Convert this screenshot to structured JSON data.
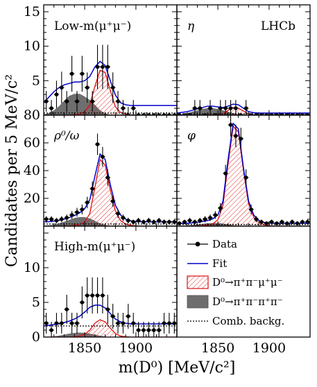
{
  "figure": {
    "xlabel": "m(D⁰) [MeV/c²]",
    "ylabel": "Candidates per 5 MeV/c²",
    "experiment_label": "LHCb"
  },
  "legend": {
    "data": "Data",
    "fit": "Fit",
    "signal": "D⁰→π⁺π⁻μ⁺μ⁻",
    "peaking": "D⁰→π⁺π⁻π⁺π⁻",
    "combinatorial": "Comb. backg."
  },
  "colors": {
    "fit": "#0000cc",
    "signal": "#dd1111",
    "peaking": "#6e6e6e",
    "frame": "#000000"
  },
  "chart_data": [
    {
      "type": "scatter",
      "panel": "Low-m(μ⁺μ⁻)",
      "label": "Low-m(μ⁺μ⁻)",
      "xlim": [
        1810,
        1940
      ],
      "ylim": [
        0,
        16
      ],
      "yticks": [
        5,
        10,
        15
      ],
      "xticks": [
        1850,
        1900
      ],
      "points": {
        "x": [
          1812.5,
          1817.5,
          1822.5,
          1827.5,
          1832.5,
          1837.5,
          1842.5,
          1847.5,
          1852.5,
          1857.5,
          1862.5,
          1867.5,
          1872.5,
          1877.5,
          1882.5,
          1887.5,
          1892.5,
          1897.5,
          1902.5,
          1907.5,
          1912.5,
          1917.5,
          1922.5,
          1927.5,
          1932.5,
          1937.5
        ],
        "y": [
          2,
          1,
          3,
          4,
          2,
          6,
          2,
          6,
          4,
          2,
          7,
          7,
          7,
          4,
          2,
          1,
          0,
          1,
          0,
          0,
          0,
          0,
          0,
          0,
          0,
          0
        ],
        "err": [
          1.5,
          1.2,
          2.0,
          2.3,
          1.5,
          2.6,
          1.5,
          2.6,
          2.2,
          1.5,
          3.2,
          3.2,
          3.2,
          2.2,
          1.5,
          1.2,
          1.2,
          1.2,
          0,
          0,
          0,
          0,
          0,
          0,
          0,
          0
        ]
      },
      "curves": {
        "x": [
          1810,
          1815,
          1820,
          1825,
          1830,
          1835,
          1840,
          1845,
          1850,
          1855,
          1860,
          1865,
          1870,
          1875,
          1880,
          1885,
          1890,
          1895,
          1900,
          1905,
          1910,
          1915,
          1920,
          1925,
          1930,
          1935,
          1940
        ],
        "fit": [
          1.8,
          2.6,
          3.4,
          4.0,
          4.4,
          4.6,
          4.8,
          4.8,
          5.0,
          5.6,
          7.0,
          7.8,
          7.2,
          5.0,
          2.9,
          1.8,
          1.5,
          1.4,
          1.4,
          1.4,
          1.4,
          1.4,
          1.4,
          1.4,
          1.4,
          1.4,
          1.4
        ],
        "signal": [
          0,
          0,
          0,
          0,
          0,
          0,
          0.05,
          0.15,
          0.5,
          1.5,
          4.2,
          6.5,
          6.2,
          3.6,
          1.2,
          0.4,
          0.15,
          0.05,
          0,
          0,
          0,
          0,
          0,
          0,
          0,
          0,
          0
        ],
        "peaking": [
          0.1,
          0.3,
          0.7,
          1.3,
          2.1,
          2.8,
          3.1,
          3.1,
          2.7,
          2.2,
          1.5,
          0.7,
          0.25,
          0.05,
          0,
          0,
          0,
          0,
          0,
          0,
          0,
          0,
          0,
          0,
          0,
          0,
          0
        ],
        "combinatorial": [
          0.3,
          0.3,
          0.3,
          0.3,
          0.3,
          0.3,
          0.3,
          0.3,
          0.3,
          0.3,
          0.3,
          0.3,
          0.3,
          0.3,
          0.3,
          0.3,
          0.3,
          0.3,
          0.3,
          0.3,
          0.3,
          0.3,
          0.3,
          0.3,
          0.3,
          0.3,
          0.3
        ]
      }
    },
    {
      "type": "scatter",
      "panel": "η",
      "label": "η",
      "xlim": [
        1810,
        1940
      ],
      "ylim": [
        0,
        16
      ],
      "yticks": [],
      "xticks": [
        1850,
        1900
      ],
      "points": {
        "x": [
          1812.5,
          1817.5,
          1822.5,
          1827.5,
          1832.5,
          1837.5,
          1842.5,
          1847.5,
          1852.5,
          1857.5,
          1862.5,
          1867.5,
          1872.5,
          1877.5,
          1882.5,
          1887.5,
          1892.5,
          1897.5,
          1902.5,
          1907.5,
          1912.5,
          1917.5,
          1922.5,
          1927.5,
          1932.5,
          1937.5
        ],
        "y": [
          0,
          0,
          0,
          1,
          1,
          0,
          1,
          0,
          1,
          1,
          1,
          1,
          0,
          1,
          0,
          0,
          0,
          0,
          0,
          0,
          0,
          0,
          0,
          0,
          0,
          0
        ],
        "err": [
          0,
          0,
          0,
          1.2,
          1.2,
          0,
          1.2,
          0,
          1.2,
          1.2,
          1.2,
          1.2,
          0,
          1.2,
          0,
          0,
          0,
          0,
          0,
          0,
          0,
          0,
          0,
          0,
          0,
          0
        ]
      },
      "curves": {
        "x": [
          1810,
          1815,
          1820,
          1825,
          1830,
          1835,
          1840,
          1845,
          1850,
          1855,
          1860,
          1865,
          1870,
          1875,
          1880,
          1885,
          1890,
          1895,
          1900,
          1905,
          1910,
          1915,
          1920,
          1925,
          1930,
          1935,
          1940
        ],
        "fit": [
          0.3,
          0.4,
          0.5,
          0.7,
          0.9,
          1.1,
          1.3,
          1.3,
          1.2,
          1.1,
          1.3,
          1.6,
          1.5,
          1.0,
          0.5,
          0.35,
          0.3,
          0.3,
          0.3,
          0.3,
          0.3,
          0.3,
          0.3,
          0.3,
          0.3,
          0.3,
          0.3
        ],
        "signal": [
          0,
          0,
          0,
          0,
          0,
          0,
          0,
          0,
          0.05,
          0.2,
          0.7,
          1.1,
          1.0,
          0.6,
          0.2,
          0.05,
          0,
          0,
          0,
          0,
          0,
          0,
          0,
          0,
          0,
          0,
          0
        ],
        "peaking": [
          0.05,
          0.1,
          0.3,
          0.5,
          0.7,
          0.9,
          1.0,
          1.0,
          0.9,
          0.7,
          0.5,
          0.3,
          0.1,
          0.03,
          0,
          0,
          0,
          0,
          0,
          0,
          0,
          0,
          0,
          0,
          0,
          0,
          0
        ],
        "combinatorial": [
          0.2,
          0.2,
          0.2,
          0.2,
          0.2,
          0.2,
          0.2,
          0.2,
          0.2,
          0.2,
          0.2,
          0.2,
          0.2,
          0.2,
          0.2,
          0.2,
          0.2,
          0.2,
          0.2,
          0.2,
          0.2,
          0.2,
          0.2,
          0.2,
          0.2,
          0.2,
          0.2
        ]
      }
    },
    {
      "type": "scatter",
      "panel": "ρ⁰/ω",
      "label": "ρ⁰/ω",
      "xlim": [
        1810,
        1940
      ],
      "ylim": [
        0,
        80
      ],
      "yticks": [
        20,
        40,
        60,
        80
      ],
      "xticks": [
        1850,
        1900
      ],
      "points": {
        "x": [
          1812.5,
          1817.5,
          1822.5,
          1827.5,
          1832.5,
          1837.5,
          1842.5,
          1847.5,
          1852.5,
          1857.5,
          1862.5,
          1867.5,
          1872.5,
          1877.5,
          1882.5,
          1887.5,
          1892.5,
          1897.5,
          1902.5,
          1907.5,
          1912.5,
          1917.5,
          1922.5,
          1927.5,
          1932.5,
          1937.5
        ],
        "y": [
          5,
          5,
          4,
          5,
          6,
          8,
          10,
          12,
          17,
          27,
          59,
          50,
          35,
          18,
          9,
          6,
          4,
          3,
          4,
          3,
          4,
          3,
          4,
          3,
          3,
          3
        ],
        "err": [
          2.2,
          2.2,
          2.0,
          2.2,
          2.4,
          2.8,
          3.2,
          3.5,
          4.1,
          5.2,
          7.7,
          7.1,
          5.9,
          4.2,
          3.0,
          2.4,
          2.0,
          1.7,
          2.0,
          1.7,
          2.0,
          1.7,
          2.0,
          1.7,
          1.7,
          1.7
        ]
      },
      "curves": {
        "x": [
          1810,
          1815,
          1820,
          1825,
          1830,
          1835,
          1840,
          1845,
          1850,
          1855,
          1860,
          1865,
          1870,
          1875,
          1880,
          1885,
          1890,
          1895,
          1900,
          1905,
          1910,
          1915,
          1920,
          1925,
          1930,
          1935,
          1940
        ],
        "fit": [
          3.0,
          3.2,
          3.6,
          4.2,
          5.0,
          6.2,
          7.6,
          9.5,
          12.5,
          19,
          36,
          52,
          48,
          30,
          15,
          8,
          5,
          3.8,
          3.3,
          3.2,
          3.1,
          3.0,
          3.0,
          3.0,
          3.0,
          3.0,
          3.0
        ],
        "signal": [
          0,
          0,
          0,
          0,
          0,
          0.2,
          0.5,
          1.2,
          3,
          9,
          28,
          48,
          44,
          26,
          11,
          4,
          1.5,
          0.6,
          0.2,
          0,
          0,
          0,
          0,
          0,
          0,
          0,
          0
        ],
        "peaking": [
          0.2,
          0.5,
          1.0,
          2.0,
          3.2,
          4.5,
          5.8,
          6.5,
          6.5,
          5.5,
          3.8,
          2.0,
          0.8,
          0.2,
          0,
          0,
          0,
          0,
          0,
          0,
          0,
          0,
          0,
          0,
          0,
          0,
          0
        ],
        "combinatorial": [
          1.5,
          1.5,
          1.5,
          1.5,
          1.5,
          1.5,
          1.5,
          1.5,
          1.5,
          1.5,
          1.5,
          1.5,
          1.5,
          1.5,
          1.5,
          1.5,
          1.5,
          1.5,
          1.5,
          1.5,
          1.5,
          1.5,
          1.5,
          1.5,
          1.5,
          1.5,
          1.5
        ]
      }
    },
    {
      "type": "scatter",
      "panel": "φ",
      "label": "φ",
      "xlim": [
        1810,
        1940
      ],
      "ylim": [
        0,
        80
      ],
      "yticks": [],
      "xticks": [
        1850,
        1900
      ],
      "points": {
        "x": [
          1812.5,
          1817.5,
          1822.5,
          1827.5,
          1832.5,
          1837.5,
          1842.5,
          1847.5,
          1852.5,
          1857.5,
          1862.5,
          1867.5,
          1872.5,
          1877.5,
          1882.5,
          1887.5,
          1892.5,
          1897.5,
          1902.5,
          1907.5,
          1912.5,
          1917.5,
          1922.5,
          1927.5,
          1932.5,
          1937.5
        ],
        "y": [
          2,
          3,
          4,
          3,
          4,
          5,
          6,
          8,
          13,
          38,
          73,
          65,
          63,
          35,
          12,
          5,
          3,
          2,
          3,
          2,
          3,
          2,
          3,
          2,
          3,
          3
        ],
        "err": [
          1.4,
          1.7,
          2.0,
          1.7,
          2.0,
          2.2,
          2.4,
          2.8,
          3.6,
          6.2,
          8.5,
          8.1,
          7.9,
          5.9,
          3.5,
          2.2,
          1.7,
          1.4,
          1.7,
          1.4,
          1.7,
          1.4,
          1.7,
          1.4,
          1.7,
          1.7
        ]
      },
      "curves": {
        "x": [
          1810,
          1815,
          1820,
          1825,
          1830,
          1835,
          1840,
          1845,
          1850,
          1855,
          1860,
          1865,
          1870,
          1875,
          1880,
          1885,
          1890,
          1895,
          1900,
          1905,
          1910,
          1915,
          1920,
          1925,
          1930,
          1935,
          1940
        ],
        "fit": [
          1.8,
          1.9,
          2.0,
          2.3,
          2.7,
          3.3,
          4.0,
          5.2,
          8,
          18,
          48,
          74,
          70,
          42,
          18,
          8,
          4,
          2.6,
          2.2,
          2.0,
          2.0,
          2.0,
          2.0,
          2.0,
          2.0,
          2.0,
          2.0
        ],
        "signal": [
          0,
          0,
          0,
          0,
          0.1,
          0.3,
          0.7,
          1.6,
          4.5,
          15,
          45,
          72,
          68,
          40,
          16,
          6.5,
          2.5,
          1.0,
          0.3,
          0,
          0,
          0,
          0,
          0,
          0,
          0,
          0
        ],
        "peaking": [
          0.1,
          0.2,
          0.4,
          0.8,
          1.2,
          1.6,
          2.0,
          2.2,
          2.2,
          1.8,
          1.2,
          0.6,
          0.2,
          0.05,
          0,
          0,
          0,
          0,
          0,
          0,
          0,
          0,
          0,
          0,
          0,
          0,
          0
        ],
        "combinatorial": [
          1.2,
          1.2,
          1.2,
          1.2,
          1.2,
          1.2,
          1.2,
          1.2,
          1.2,
          1.2,
          1.2,
          1.2,
          1.2,
          1.2,
          1.2,
          1.2,
          1.2,
          1.2,
          1.2,
          1.2,
          1.2,
          1.2,
          1.2,
          1.2,
          1.2,
          1.2,
          1.2
        ]
      }
    },
    {
      "type": "scatter",
      "panel": "High-m(μ⁺μ⁻)",
      "label": "High-m(μ⁺μ⁻)",
      "xlim": [
        1810,
        1940
      ],
      "ylim": [
        0,
        16
      ],
      "yticks": [
        0,
        5,
        10
      ],
      "xticks": [
        1850,
        1900
      ],
      "points": {
        "x": [
          1812.5,
          1817.5,
          1822.5,
          1827.5,
          1832.5,
          1837.5,
          1842.5,
          1847.5,
          1852.5,
          1857.5,
          1862.5,
          1867.5,
          1872.5,
          1877.5,
          1882.5,
          1887.5,
          1892.5,
          1897.5,
          1902.5,
          1907.5,
          1912.5,
          1917.5,
          1922.5,
          1927.5,
          1932.5,
          1937.5
        ],
        "y": [
          2,
          1,
          2,
          2,
          4,
          2,
          2,
          5,
          6,
          6,
          6,
          6,
          4,
          3,
          2,
          2,
          3,
          2,
          1,
          1,
          1,
          1,
          1,
          2,
          2,
          2
        ],
        "err": [
          1.5,
          1.2,
          1.5,
          1.5,
          2.1,
          1.5,
          1.5,
          2.3,
          2.6,
          2.6,
          2.6,
          2.6,
          2.1,
          1.8,
          1.5,
          1.5,
          1.8,
          1.5,
          1.2,
          1.2,
          1.2,
          1.2,
          1.2,
          1.5,
          1.5,
          1.5
        ]
      },
      "curves": {
        "x": [
          1810,
          1815,
          1820,
          1825,
          1830,
          1835,
          1840,
          1845,
          1850,
          1855,
          1860,
          1865,
          1870,
          1875,
          1880,
          1885,
          1890,
          1895,
          1900,
          1905,
          1910,
          1915,
          1920,
          1925,
          1930,
          1935,
          1940
        ],
        "fit": [
          1.6,
          1.7,
          1.8,
          1.9,
          2.1,
          2.3,
          2.6,
          3.0,
          3.6,
          4.3,
          4.6,
          4.6,
          4.2,
          3.4,
          2.6,
          2.2,
          2.0,
          1.9,
          1.9,
          1.9,
          1.9,
          1.9,
          1.9,
          1.9,
          1.9,
          1.9,
          1.9
        ],
        "signal": [
          0,
          0,
          0,
          0,
          0,
          0,
          0.05,
          0.15,
          0.4,
          1.0,
          2.0,
          2.5,
          2.2,
          1.3,
          0.5,
          0.15,
          0.05,
          0,
          0,
          0,
          0,
          0,
          0,
          0,
          0,
          0,
          0
        ],
        "peaking": [
          0.02,
          0.05,
          0.1,
          0.2,
          0.35,
          0.5,
          0.6,
          0.65,
          0.6,
          0.5,
          0.35,
          0.2,
          0.08,
          0.02,
          0,
          0,
          0,
          0,
          0,
          0,
          0,
          0,
          0,
          0,
          0,
          0,
          0
        ],
        "combinatorial": [
          1.6,
          1.6,
          1.6,
          1.6,
          1.6,
          1.6,
          1.6,
          1.6,
          1.6,
          1.6,
          1.6,
          1.6,
          1.6,
          1.6,
          1.6,
          1.6,
          1.6,
          1.6,
          1.6,
          1.6,
          1.6,
          1.6,
          1.6,
          1.6,
          1.6,
          1.6,
          1.6
        ]
      }
    }
  ]
}
